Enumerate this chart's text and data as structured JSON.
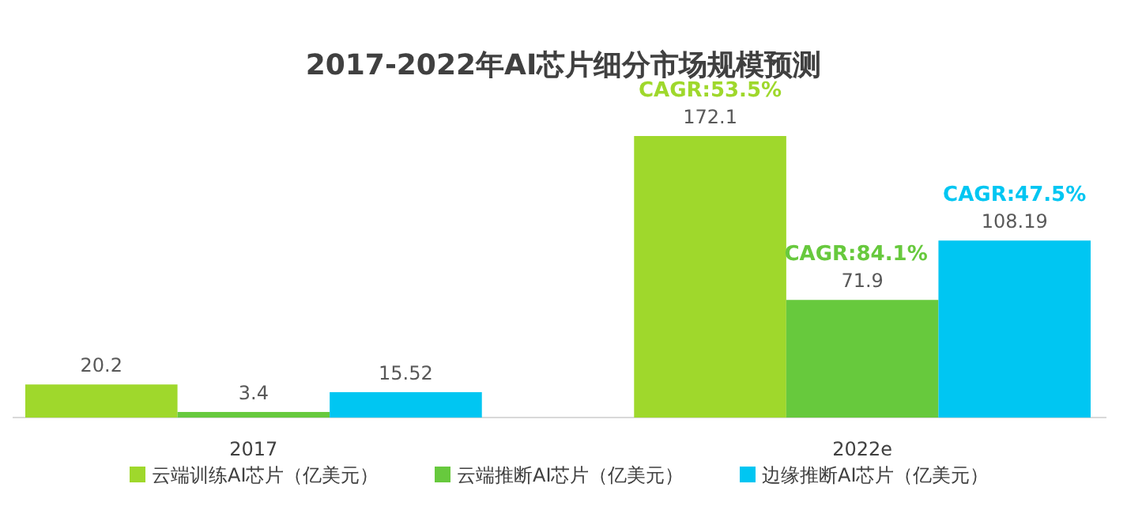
{
  "chart_data": {
    "type": "bar",
    "title": "2017-2022年AI芯片细分市场规模预测",
    "categories": [
      "2017",
      "2022e"
    ],
    "series": [
      {
        "name": "云端训练AI芯片（亿美元）",
        "color": "#9fd82c",
        "values": [
          20.2,
          172.1
        ]
      },
      {
        "name": "云端推断AI芯片（亿美元）",
        "color": "#67c93d",
        "values": [
          3.4,
          71.9
        ]
      },
      {
        "name": "边缘推断AI芯片（亿美元）",
        "color": "#00c6f2",
        "values": [
          15.52,
          108.19
        ]
      }
    ],
    "annotations": [
      "CAGR:53.5%",
      "CAGR:84.1%",
      "CAGR:47.5%"
    ],
    "data_labels": true,
    "legend": "bottom"
  }
}
